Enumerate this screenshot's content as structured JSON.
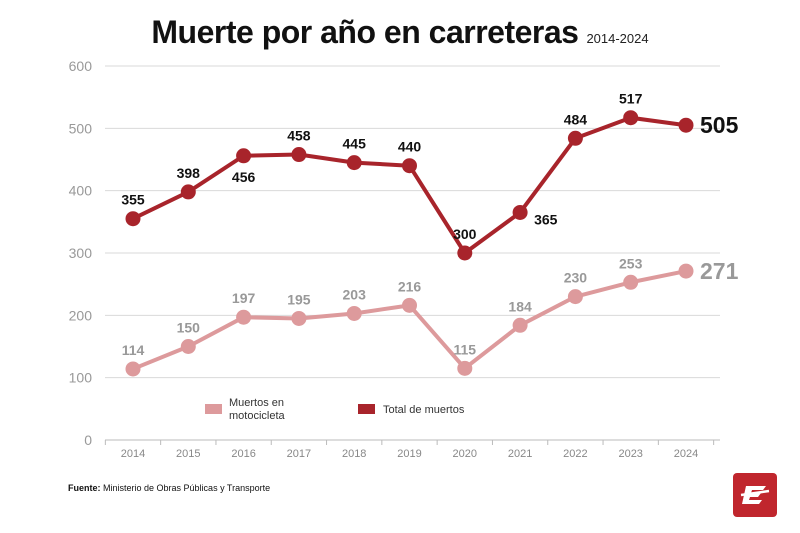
{
  "header": {
    "title": "Muerte por año en carreteras",
    "subtitle": "2014-2024"
  },
  "source": {
    "label": "Fuente:",
    "text": "Ministerio de Obras Públicas y Transporte"
  },
  "logo": {
    "icon": "newspaper-logo-icon"
  },
  "colors": {
    "total": "#a8242b",
    "moto": "#dd9a9c",
    "grid": "#d9d9d9",
    "axis_text": "#999999"
  },
  "chart_data": {
    "type": "line",
    "title": "Muerte por año en carreteras",
    "subtitle": "2014-2024",
    "categories": [
      "2014",
      "2015",
      "2016",
      "2017",
      "2018",
      "2019",
      "2020",
      "2021",
      "2022",
      "2023",
      "2024"
    ],
    "ylim": [
      0,
      600
    ],
    "yticks": [
      0,
      100,
      200,
      300,
      400,
      500,
      600
    ],
    "grid": true,
    "legend_position": "bottom-left",
    "series": [
      {
        "key": "total",
        "name": "Total de muertos",
        "values": [
          355,
          398,
          456,
          458,
          445,
          440,
          300,
          365,
          484,
          517,
          505
        ]
      },
      {
        "key": "moto",
        "name": "Muertos en motocicleta",
        "values": [
          114,
          150,
          197,
          195,
          203,
          216,
          115,
          184,
          230,
          253,
          271
        ]
      }
    ]
  }
}
